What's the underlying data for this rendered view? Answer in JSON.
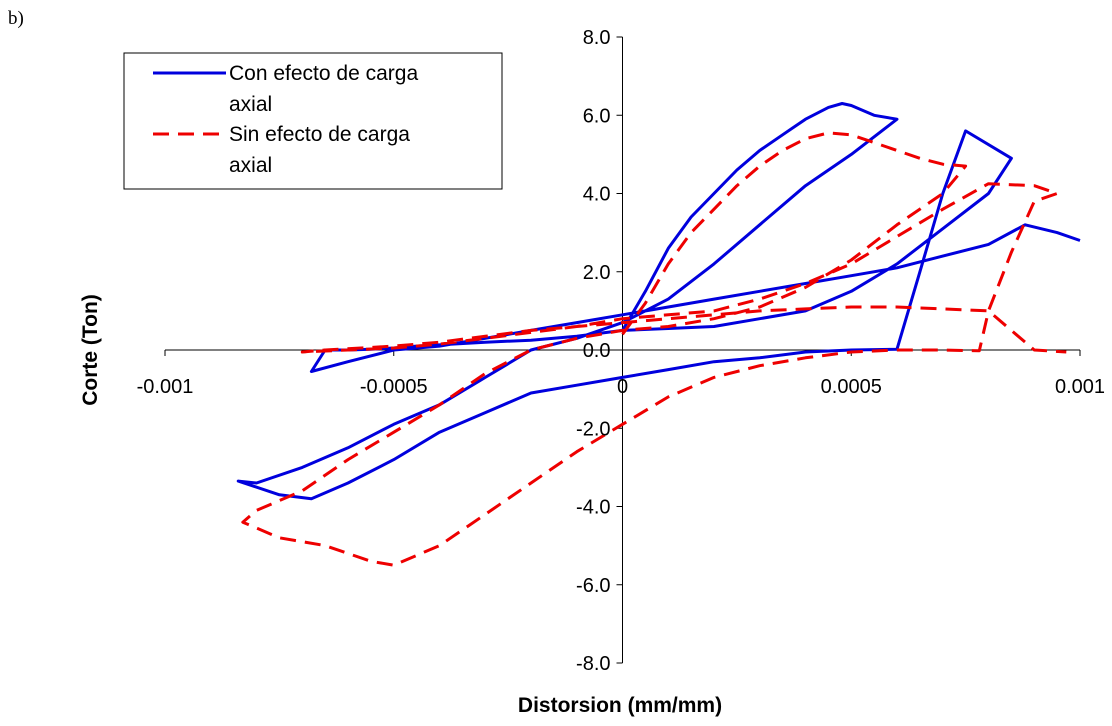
{
  "panel_label": "b)",
  "chart_data": {
    "type": "line",
    "title": "",
    "xlabel": "Distorsion (mm/mm)",
    "ylabel": "Corte (Ton)",
    "xlim": [
      -0.001,
      0.001
    ],
    "ylim": [
      -8.0,
      8.0
    ],
    "x_ticks": [
      "-0.001",
      "-0.0005",
      "0",
      "0.0005",
      "0.001"
    ],
    "y_ticks": [
      "8.0",
      "6.0",
      "4.0",
      "2.0",
      "0.0",
      "-2.0",
      "-4.0",
      "-6.0",
      "-8.0"
    ],
    "grid": false,
    "legend_position": "top-left",
    "series": [
      {
        "name": "Con efecto de carga axial",
        "color": "#0000dd",
        "style": "solid",
        "x": [
          0,
          5e-05,
          0.0001,
          0.00015,
          0.0002,
          0.00025,
          0.0003,
          0.00035,
          0.0004,
          0.00045,
          0.00048,
          0.0005,
          0.00055,
          0.0006,
          0.0005,
          0.0004,
          0.0003,
          0.0002,
          0.0001,
          0.0,
          -0.0001,
          -0.0002,
          -0.0003,
          -0.0004,
          -0.0005,
          -0.0006,
          -0.0007,
          -0.0008,
          -0.00084,
          -0.00075,
          -0.00068,
          -0.0006,
          -0.0005,
          -0.0004,
          -0.0003,
          -0.0002,
          -0.0001,
          0.0,
          0.0001,
          0.0002,
          0.0003,
          0.0004,
          0.0005,
          0.0006,
          0.00065,
          0.0007,
          0.00075,
          0.00085,
          0.0008,
          0.0007,
          0.0006,
          0.0005,
          0.0004,
          0.0003,
          0.0002,
          0.0001,
          0.0,
          -0.0001,
          -0.0002,
          -0.0003,
          -0.00045,
          -0.0005,
          -0.00055,
          -0.0006,
          -0.00065,
          -0.00068,
          -0.0006,
          -0.0005,
          -0.0004,
          -0.0003,
          -0.0002,
          -0.0001,
          0.0,
          0.0001,
          0.0002,
          0.0003,
          0.0004,
          0.0005,
          0.0006,
          0.0007,
          0.0008,
          0.00088,
          0.00095,
          0.001
        ],
        "y": [
          0.5,
          1.5,
          2.6,
          3.4,
          4.0,
          4.6,
          5.1,
          5.5,
          5.9,
          6.2,
          6.3,
          6.25,
          6.0,
          5.9,
          5.0,
          4.2,
          3.2,
          2.2,
          1.3,
          0.7,
          0.3,
          0.0,
          -0.7,
          -1.4,
          -1.9,
          -2.5,
          -3.0,
          -3.4,
          -3.35,
          -3.7,
          -3.8,
          -3.4,
          -2.8,
          -2.1,
          -1.6,
          -1.1,
          -0.9,
          -0.7,
          -0.5,
          -0.3,
          -0.2,
          -0.05,
          0.0,
          0.02,
          2.0,
          4.0,
          5.6,
          4.9,
          4.0,
          3.1,
          2.2,
          1.5,
          1.0,
          0.8,
          0.6,
          0.55,
          0.5,
          0.35,
          0.25,
          0.2,
          0.1,
          0.05,
          0.02,
          0.0,
          0.0,
          -0.55,
          -0.3,
          0.0,
          0.1,
          0.3,
          0.5,
          0.7,
          0.9,
          1.1,
          1.3,
          1.5,
          1.7,
          1.9,
          2.1,
          2.4,
          2.7,
          3.2,
          3.0,
          2.8
        ]
      },
      {
        "name": "Sin efecto de carga axial",
        "color": "#ee0000",
        "style": "dashed",
        "x": [
          0,
          5e-05,
          0.0001,
          0.00015,
          0.0002,
          0.00025,
          0.0003,
          0.00035,
          0.0004,
          0.00045,
          0.0005,
          0.00055,
          0.0006,
          0.00065,
          0.0007,
          0.00075,
          0.0007,
          0.0006,
          0.0005,
          0.0004,
          0.0003,
          0.0002,
          0.0001,
          0.0,
          -0.0001,
          -0.0002,
          -0.0003,
          -0.0004,
          -0.0005,
          -0.0006,
          -0.0007,
          -0.0008,
          -0.00083,
          -0.00075,
          -0.00065,
          -0.00055,
          -0.0005,
          -0.0004,
          -0.0003,
          -0.0002,
          -0.0001,
          0.0,
          0.0001,
          0.0002,
          0.0003,
          0.0004,
          0.0005,
          0.0006,
          0.0007,
          0.00078,
          0.0008,
          0.00085,
          0.0009,
          0.00095,
          0.0009,
          0.0008,
          0.0007,
          0.0006,
          0.0005,
          0.0004,
          0.0003,
          0.0002,
          0.0001,
          0.0,
          -0.0001,
          -0.0002,
          -0.0003,
          -0.0004,
          -0.0005,
          -0.0006,
          -0.0007,
          -0.00065,
          -0.0005,
          -0.0004,
          -0.0003,
          -0.0002,
          -0.0001,
          0.0,
          0.0001,
          0.0002,
          0.0003,
          0.0004,
          0.0005,
          0.0006,
          0.0007,
          0.0008,
          0.0009,
          0.00097
        ],
        "y": [
          0.4,
          1.2,
          2.2,
          3.0,
          3.6,
          4.2,
          4.7,
          5.1,
          5.4,
          5.55,
          5.5,
          5.3,
          5.1,
          4.9,
          4.75,
          4.7,
          4.0,
          3.2,
          2.3,
          1.6,
          1.1,
          0.8,
          0.6,
          0.5,
          0.3,
          0.0,
          -0.6,
          -1.4,
          -2.1,
          -2.8,
          -3.6,
          -4.1,
          -4.4,
          -4.8,
          -5.0,
          -5.4,
          -5.5,
          -5.0,
          -4.2,
          -3.4,
          -2.6,
          -1.9,
          -1.2,
          -0.7,
          -0.4,
          -0.2,
          -0.05,
          0.0,
          0.0,
          -0.02,
          1.0,
          2.5,
          3.8,
          4.0,
          4.2,
          4.25,
          3.6,
          2.9,
          2.2,
          1.7,
          1.3,
          1.0,
          0.9,
          0.8,
          0.6,
          0.45,
          0.3,
          0.15,
          0.05,
          0.0,
          -0.05,
          0.0,
          0.1,
          0.2,
          0.35,
          0.5,
          0.6,
          0.7,
          0.8,
          0.9,
          1.0,
          1.05,
          1.1,
          1.1,
          1.05,
          1.0,
          0.0,
          -0.05
        ]
      }
    ],
    "legend": [
      {
        "line1": "Con efecto de carga",
        "line2": "axial"
      },
      {
        "line1": "Sin efecto de carga",
        "line2": "axial"
      }
    ]
  }
}
